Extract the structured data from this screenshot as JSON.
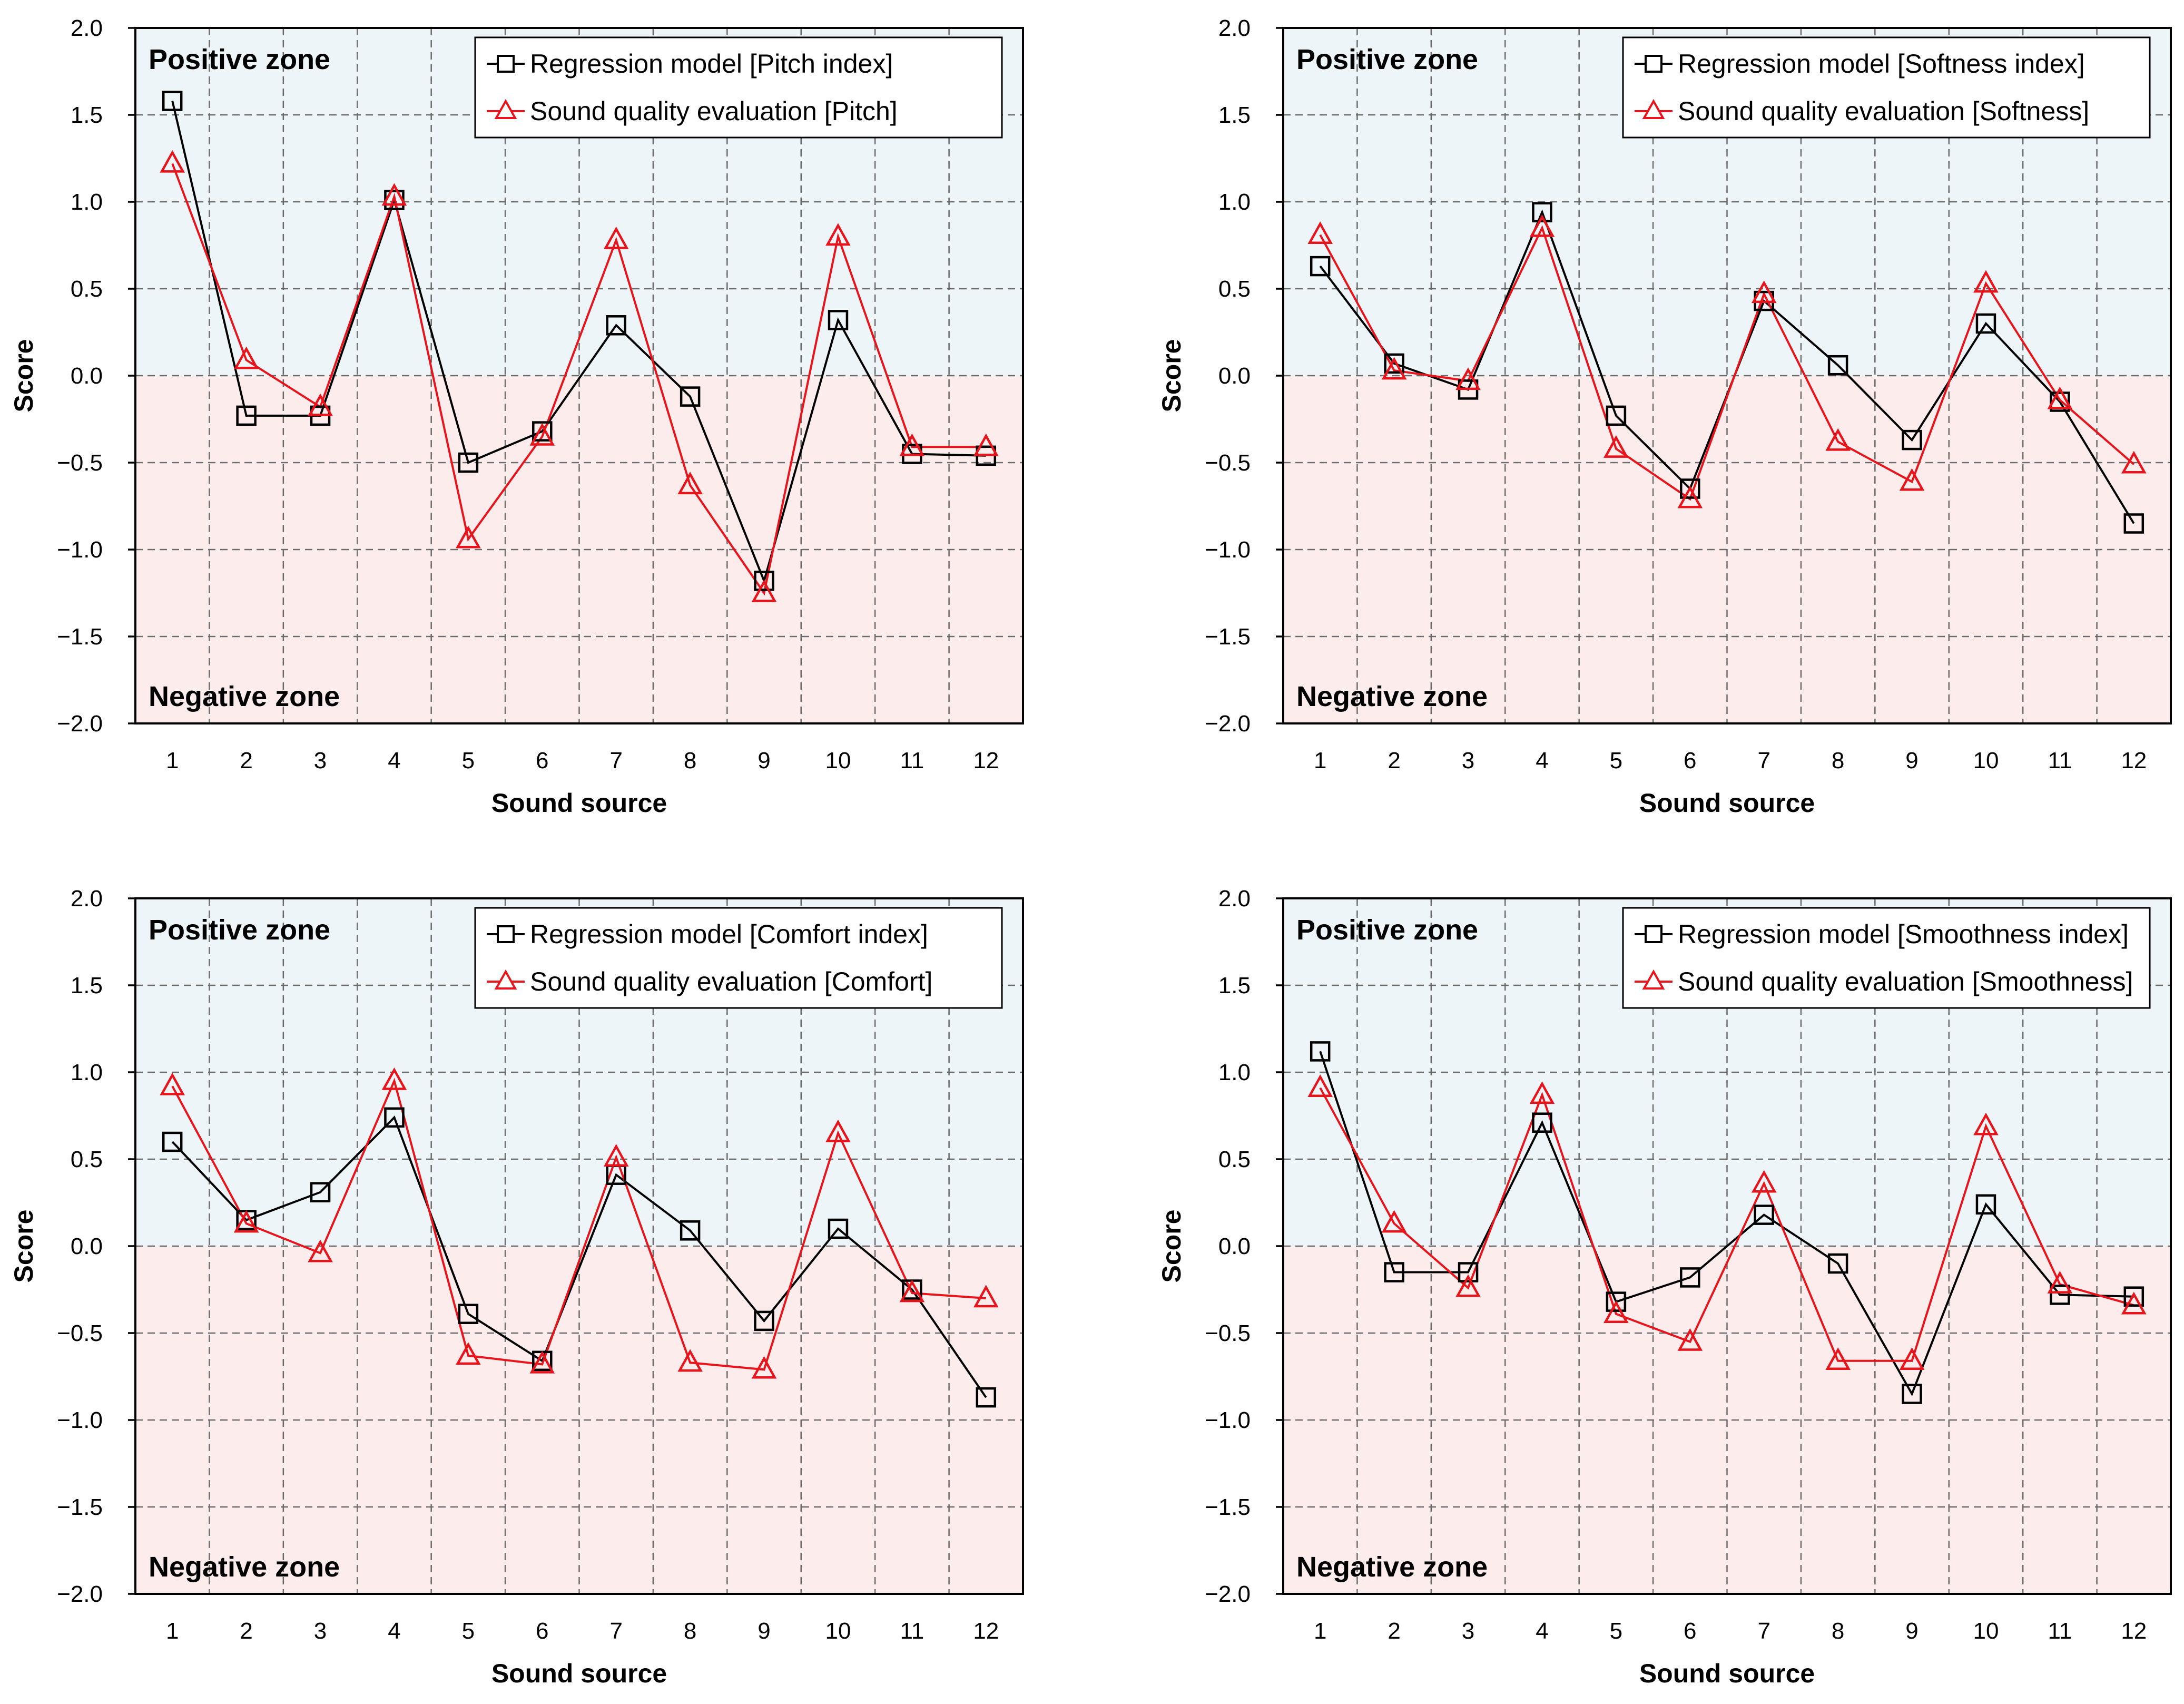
{
  "chart_data": [
    {
      "type": "line",
      "panel": "top-left",
      "xlabel": "Sound source",
      "ylabel": "Score",
      "ylim": [
        -2.0,
        2.0
      ],
      "yticks": [
        2.0,
        1.5,
        1.0,
        0.5,
        0.0,
        -0.5,
        -1.0,
        -1.5,
        -2.0
      ],
      "ytick_labels": [
        "2.0",
        "1.5",
        "1.0",
        "0.5",
        "0.0",
        "−0.5",
        "−1.0",
        "−1.5",
        "−2.0"
      ],
      "categories": [
        "1",
        "2",
        "3",
        "4",
        "5",
        "6",
        "7",
        "8",
        "9",
        "10",
        "11",
        "12"
      ],
      "grid": true,
      "legend_position": "top-right",
      "zones": {
        "positive_label": "Positive zone",
        "negative_label": "Negative zone",
        "positive_color": "#eef5f9",
        "negative_color": "#fcecec"
      },
      "series": [
        {
          "name": "Regression model [Pitch index]",
          "color": "#000000",
          "marker": "square",
          "values": [
            1.58,
            -0.23,
            -0.23,
            1.01,
            -0.5,
            -0.32,
            0.29,
            -0.12,
            -1.18,
            0.32,
            -0.45,
            -0.46
          ]
        },
        {
          "name": "Sound quality evaluation [Pitch]",
          "color": "#e8141b",
          "marker": "triangle",
          "values": [
            1.22,
            0.09,
            -0.18,
            1.03,
            -0.94,
            -0.35,
            0.78,
            -0.63,
            -1.25,
            0.8,
            -0.41,
            -0.41
          ]
        }
      ]
    },
    {
      "type": "line",
      "panel": "top-right",
      "xlabel": "Sound source",
      "ylabel": "Score",
      "ylim": [
        -2.0,
        2.0
      ],
      "yticks": [
        2.0,
        1.5,
        1.0,
        0.5,
        0.0,
        -0.5,
        -1.0,
        -1.5,
        -2.0
      ],
      "ytick_labels": [
        "2.0",
        "1.5",
        "1.0",
        "0.5",
        "0.0",
        "−0.5",
        "−1.0",
        "−1.5",
        "−2.0"
      ],
      "categories": [
        "1",
        "2",
        "3",
        "4",
        "5",
        "6",
        "7",
        "8",
        "9",
        "10",
        "11",
        "12"
      ],
      "grid": true,
      "legend_position": "top-right",
      "zones": {
        "positive_label": "Positive zone",
        "negative_label": "Negative zone",
        "positive_color": "#eef5f9",
        "negative_color": "#fcecec"
      },
      "series": [
        {
          "name": "Regression model [Softness index]",
          "color": "#000000",
          "marker": "square",
          "values": [
            0.63,
            0.07,
            -0.08,
            0.94,
            -0.23,
            -0.65,
            0.43,
            0.06,
            -0.37,
            0.3,
            -0.15,
            -0.85
          ]
        },
        {
          "name": "Sound quality evaluation [Softness]",
          "color": "#e8141b",
          "marker": "triangle",
          "values": [
            0.81,
            0.03,
            -0.03,
            0.85,
            -0.42,
            -0.71,
            0.47,
            -0.38,
            -0.61,
            0.53,
            -0.14,
            -0.51
          ]
        }
      ]
    },
    {
      "type": "line",
      "panel": "bottom-left",
      "xlabel": "Sound source",
      "ylabel": "Score",
      "ylim": [
        -2.0,
        2.0
      ],
      "yticks": [
        2.0,
        1.5,
        1.0,
        0.5,
        0.0,
        -0.5,
        -1.0,
        -1.5,
        -2.0
      ],
      "ytick_labels": [
        "2.0",
        "1.5",
        "1.0",
        "0.5",
        "0.0",
        "−0.5",
        "−1.0",
        "−1.5",
        "−2.0"
      ],
      "categories": [
        "1",
        "2",
        "3",
        "4",
        "5",
        "6",
        "7",
        "8",
        "9",
        "10",
        "11",
        "12"
      ],
      "grid": true,
      "legend_position": "top-right",
      "zones": {
        "positive_label": "Positive zone",
        "negative_label": "Negative zone",
        "positive_color": "#eef5f9",
        "negative_color": "#fcecec"
      },
      "series": [
        {
          "name": "Regression model [Comfort index]",
          "color": "#000000",
          "marker": "square",
          "values": [
            0.6,
            0.15,
            0.31,
            0.74,
            -0.39,
            -0.66,
            0.41,
            0.09,
            -0.43,
            0.1,
            -0.25,
            -0.87
          ]
        },
        {
          "name": "Sound quality evaluation [Comfort]",
          "color": "#e8141b",
          "marker": "triangle",
          "values": [
            0.92,
            0.13,
            -0.04,
            0.95,
            -0.63,
            -0.68,
            0.51,
            -0.67,
            -0.71,
            0.65,
            -0.27,
            -0.3
          ]
        }
      ]
    },
    {
      "type": "line",
      "panel": "bottom-right",
      "xlabel": "Sound source",
      "ylabel": "Score",
      "ylim": [
        -2.0,
        2.0
      ],
      "yticks": [
        2.0,
        1.5,
        1.0,
        0.5,
        0.0,
        -0.5,
        -1.0,
        -1.5,
        -2.0
      ],
      "ytick_labels": [
        "2.0",
        "1.5",
        "1.0",
        "0.5",
        "0.0",
        "−0.5",
        "−1.0",
        "−1.5",
        "−2.0"
      ],
      "categories": [
        "1",
        "2",
        "3",
        "4",
        "5",
        "6",
        "7",
        "8",
        "9",
        "10",
        "11",
        "12"
      ],
      "grid": true,
      "legend_position": "top-right",
      "zones": {
        "positive_label": "Positive zone",
        "negative_label": "Negative zone",
        "positive_color": "#eef5f9",
        "negative_color": "#fcecec"
      },
      "series": [
        {
          "name": "Regression model [Smoothness index]",
          "color": "#000000",
          "marker": "square",
          "values": [
            1.12,
            -0.15,
            -0.15,
            0.71,
            -0.32,
            -0.18,
            0.18,
            -0.1,
            -0.85,
            0.24,
            -0.28,
            -0.29
          ]
        },
        {
          "name": "Sound quality evaluation [Smoothness]",
          "color": "#e8141b",
          "marker": "triangle",
          "values": [
            0.91,
            0.13,
            -0.24,
            0.87,
            -0.39,
            -0.55,
            0.36,
            -0.66,
            -0.66,
            0.69,
            -0.22,
            -0.34
          ]
        }
      ]
    }
  ]
}
